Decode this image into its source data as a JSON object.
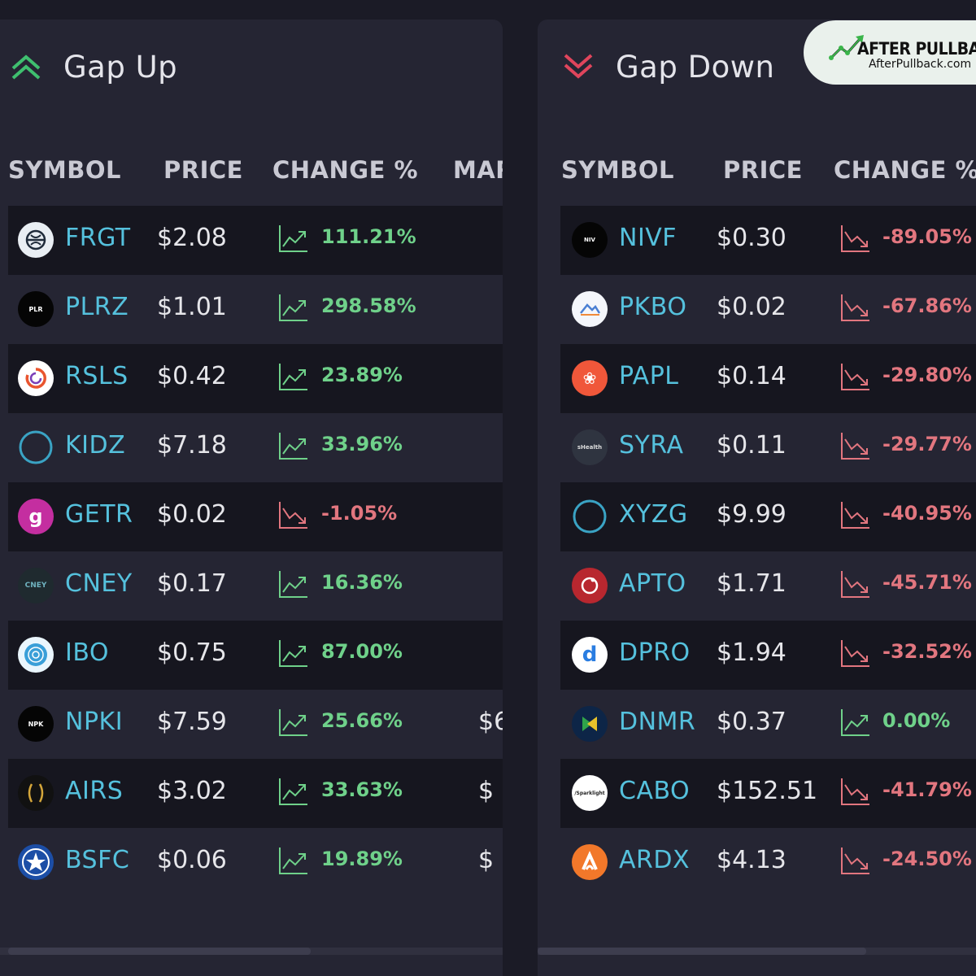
{
  "colors": {
    "up": "#6fd18a",
    "down": "#e2767f",
    "symbol": "#55c1dd"
  },
  "brand": {
    "name": "AFTER PULLBACK",
    "url": "AfterPullback.com"
  },
  "gap_up": {
    "title": "Gap Up",
    "icon": "double-chevron-up-icon",
    "columns": [
      "SYMBOL",
      "PRICE",
      "CHANGE %",
      "MAR"
    ],
    "rows": [
      {
        "symbol": "FRGT",
        "price": "$2.08",
        "change": "111.21%",
        "trend": "up",
        "market_cap": ""
      },
      {
        "symbol": "PLRZ",
        "price": "$1.01",
        "change": "298.58%",
        "trend": "up",
        "market_cap": ""
      },
      {
        "symbol": "RSLS",
        "price": "$0.42",
        "change": "23.89%",
        "trend": "up",
        "market_cap": ""
      },
      {
        "symbol": "KIDZ",
        "price": "$7.18",
        "change": "33.96%",
        "trend": "up",
        "market_cap": ""
      },
      {
        "symbol": "GETR",
        "price": "$0.02",
        "change": "-1.05%",
        "trend": "down",
        "market_cap": ""
      },
      {
        "symbol": "CNEY",
        "price": "$0.17",
        "change": "16.36%",
        "trend": "up",
        "market_cap": ""
      },
      {
        "symbol": "IBO",
        "price": "$0.75",
        "change": "87.00%",
        "trend": "up",
        "market_cap": ""
      },
      {
        "symbol": "NPKI",
        "price": "$7.59",
        "change": "25.66%",
        "trend": "up",
        "market_cap": "$6"
      },
      {
        "symbol": "AIRS",
        "price": "$3.02",
        "change": "33.63%",
        "trend": "up",
        "market_cap": "$"
      },
      {
        "symbol": "BSFC",
        "price": "$0.06",
        "change": "19.89%",
        "trend": "up",
        "market_cap": "$"
      }
    ]
  },
  "gap_down": {
    "title": "Gap Down",
    "icon": "double-chevron-down-icon",
    "columns": [
      "SYMBOL",
      "PRICE",
      "CHANGE %"
    ],
    "rows": [
      {
        "symbol": "NIVF",
        "price": "$0.30",
        "change": "-89.05%",
        "trend": "down"
      },
      {
        "symbol": "PKBO",
        "price": "$0.02",
        "change": "-67.86%",
        "trend": "down"
      },
      {
        "symbol": "PAPL",
        "price": "$0.14",
        "change": "-29.80%",
        "trend": "down"
      },
      {
        "symbol": "SYRA",
        "price": "$0.11",
        "change": "-29.77%",
        "trend": "down"
      },
      {
        "symbol": "XYZG",
        "price": "$9.99",
        "change": "-40.95%",
        "trend": "down"
      },
      {
        "symbol": "APTO",
        "price": "$1.71",
        "change": "-45.71%",
        "trend": "down"
      },
      {
        "symbol": "DPRO",
        "price": "$1.94",
        "change": "-32.52%",
        "trend": "down"
      },
      {
        "symbol": "DNMR",
        "price": "$0.37",
        "change": "0.00%",
        "trend": "up"
      },
      {
        "symbol": "CABO",
        "price": "$152.51",
        "change": "-41.79%",
        "trend": "down"
      },
      {
        "symbol": "ARDX",
        "price": "$4.13",
        "change": "-24.50%",
        "trend": "down"
      }
    ]
  }
}
